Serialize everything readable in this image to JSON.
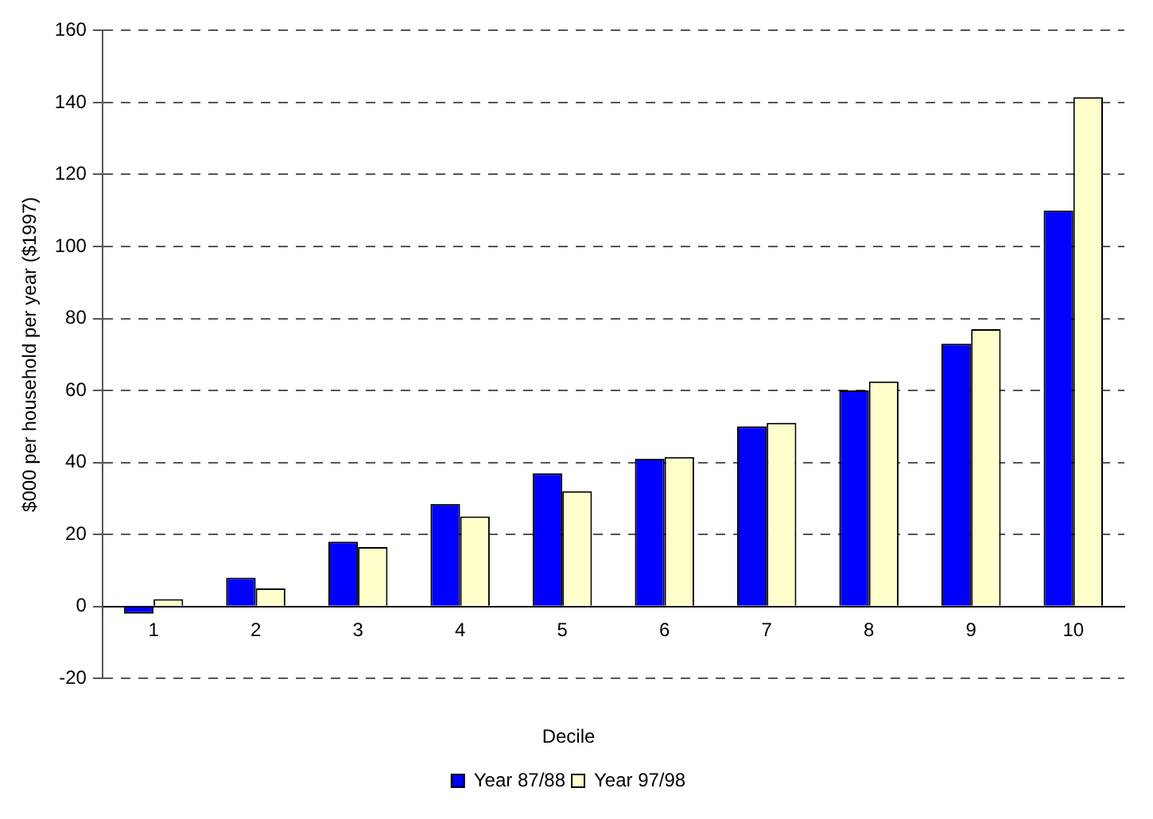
{
  "chart_data": {
    "type": "bar",
    "xlabel": "Decile",
    "ylabel": "$000 per household per year ($1997)",
    "categories": [
      "1",
      "2",
      "3",
      "4",
      "5",
      "6",
      "7",
      "8",
      "9",
      "10"
    ],
    "series": [
      {
        "name": "Year 87/88",
        "color": "#0000ff",
        "values": [
          -2,
          8,
          18,
          28.5,
          37,
          41,
          50,
          60,
          73,
          110
        ]
      },
      {
        "name": "Year 97/98",
        "color": "#ffffcc",
        "values": [
          2,
          5,
          16.5,
          25,
          32,
          41.5,
          51,
          62.5,
          77,
          141.5
        ]
      }
    ],
    "ylim": [
      -20,
      160
    ],
    "yticks": [
      -20,
      0,
      20,
      40,
      60,
      80,
      100,
      120,
      140,
      160
    ],
    "grid": "y",
    "legend": "bottom"
  }
}
